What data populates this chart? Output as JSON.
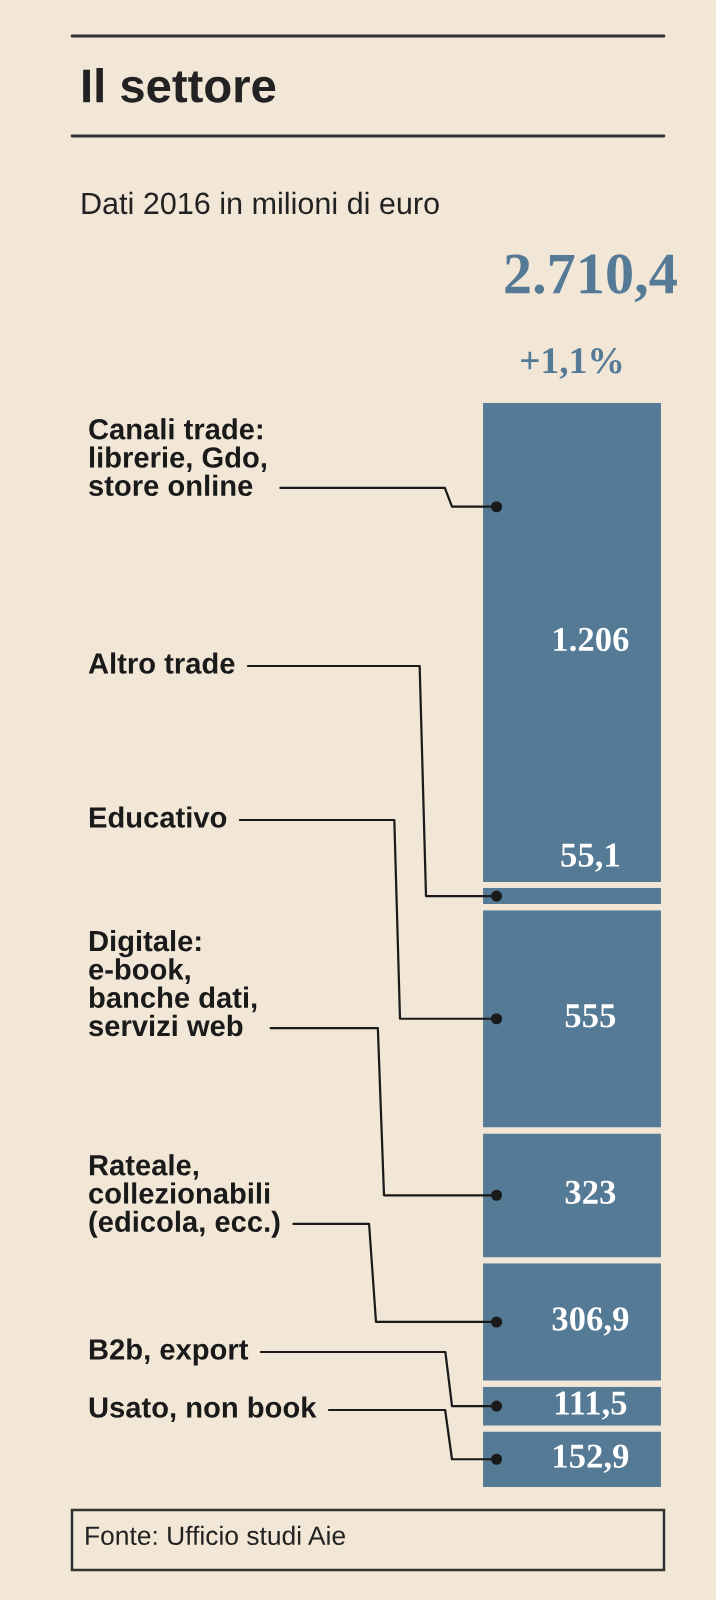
{
  "chart_data": {
    "type": "bar",
    "stacked": true,
    "title": "Il settore",
    "subtitle": "Dati 2016 in milioni di euro",
    "categories": [
      null
    ],
    "series": [
      {
        "name": "Usato, non book",
        "color": "#557a96",
        "values": [
          152.9
        ],
        "value_labels": [
          "152,9"
        ]
      },
      {
        "name": "B2b, export",
        "color": "#557a96",
        "values": [
          111.5
        ],
        "value_labels": [
          "111,5"
        ]
      },
      {
        "name": "Rateale,\ncollezionabili\n(edicola, ecc.)",
        "color": "#557a96",
        "values": [
          306.9
        ],
        "value_labels": [
          "306,9"
        ]
      },
      {
        "name": "Digitale:\ne-book,\nbanche dati,\nservizi web",
        "color": "#557a96",
        "values": [
          323
        ],
        "value_labels": [
          "323"
        ]
      },
      {
        "name": "Educativo",
        "color": "#557a96",
        "values": [
          555
        ],
        "value_labels": [
          "555"
        ]
      },
      {
        "name": "Altro trade",
        "color": "#557a96",
        "values": [
          55.1
        ],
        "value_labels": [
          "55,1"
        ]
      },
      {
        "name": "Canali trade:\nlibrerie, Gdo,\nstore online",
        "color": "#557a96",
        "values": [
          1206
        ],
        "value_labels": [
          "1.206"
        ]
      }
    ],
    "totals": [
      "2.710,4"
    ],
    "annotations": [
      "+1,1%",
      "Fonte: Ufficio studi Aie"
    ],
    "legend": false
  }
}
